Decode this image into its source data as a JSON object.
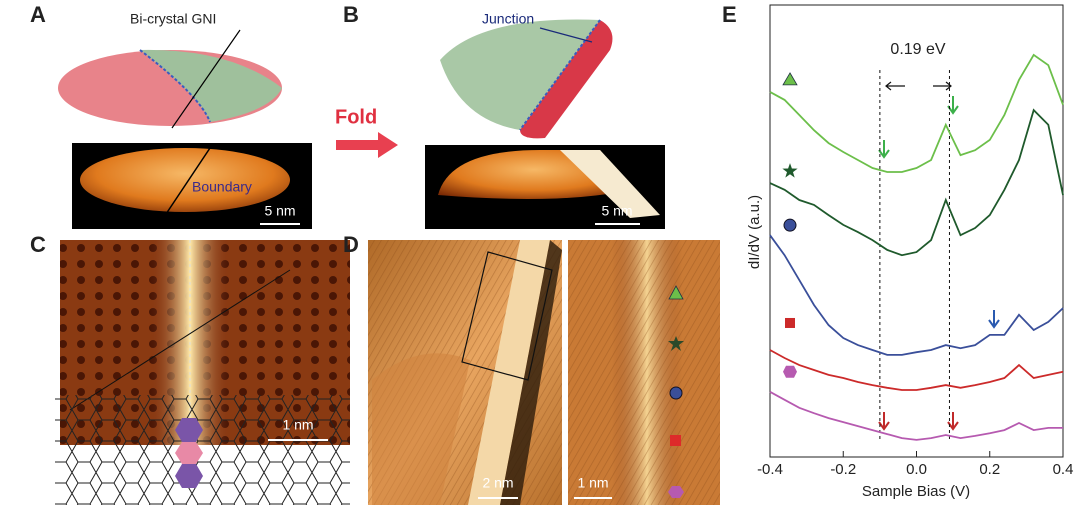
{
  "panel_a": {
    "label": "A",
    "callout": "Bi-crystal GNI",
    "boundary": "Boundary",
    "scale_bar": "5 nm"
  },
  "panel_b": {
    "label": "B",
    "callout": "Junction",
    "arrow_text": "Fold",
    "scale_bar": "5 nm"
  },
  "panel_c": {
    "label": "C",
    "scale_bar": "1 nm"
  },
  "panel_d": {
    "label": "D",
    "scale_bar_left": "2 nm",
    "scale_bar_right": "1 nm"
  },
  "chart_data": {
    "type": "line",
    "label": "E",
    "xlabel": "Sample Bias (V)",
    "ylabel": "dI/dV (a.u.)",
    "annotation": "0.19 eV",
    "x": [
      -0.4,
      -0.36,
      -0.32,
      -0.28,
      -0.24,
      -0.2,
      -0.16,
      -0.12,
      -0.08,
      -0.04,
      0,
      0.04,
      0.08,
      0.12,
      0.16,
      0.2,
      0.24,
      0.28,
      0.32,
      0.36,
      0.4
    ],
    "xlim": [
      -0.4,
      0.4
    ],
    "xticks": [
      -0.4,
      -0.2,
      {
        "value": 0,
        "label": "0.0"
      },
      0.2,
      0.4
    ],
    "ylim": [
      0,
      10
    ],
    "vlines": [
      -0.1,
      0.09
    ],
    "series": [
      {
        "color": "#6cbf4a",
        "marker": "triangle",
        "values": [
          8.16,
          7.98,
          7.64,
          7.3,
          7.01,
          6.81,
          6.63,
          6.45,
          6.36,
          6.36,
          6.45,
          6.63,
          7.42,
          6.74,
          6.85,
          7.08,
          7.64,
          8.43,
          8.99,
          8.76,
          7.87
        ]
      },
      {
        "color": "#1f5a2c",
        "marker": "star",
        "values": [
          6.11,
          5.96,
          5.73,
          5.62,
          5.39,
          5.17,
          5.01,
          4.83,
          4.61,
          4.49,
          4.56,
          4.83,
          5.73,
          4.94,
          5.1,
          5.39,
          5.96,
          6.63,
          7.75,
          7.42,
          5.84
        ]
      },
      {
        "color": "#3a4f9a",
        "marker": "circle",
        "values": [
          4.94,
          4.49,
          3.93,
          3.37,
          2.92,
          2.63,
          2.47,
          2.36,
          2.25,
          2.25,
          2.31,
          2.36,
          2.47,
          2.4,
          2.47,
          2.7,
          2.7,
          3.15,
          2.81,
          2.99,
          3.3
        ]
      },
      {
        "color": "#cc2a2a",
        "marker": "square",
        "values": [
          2.36,
          2.18,
          2.02,
          1.91,
          1.8,
          1.73,
          1.64,
          1.57,
          1.51,
          1.46,
          1.46,
          1.51,
          1.57,
          1.51,
          1.57,
          1.64,
          1.73,
          2.02,
          1.73,
          1.8,
          1.87
        ]
      },
      {
        "color": "#b65ab0",
        "marker": "hexagon",
        "values": [
          1.42,
          1.24,
          1.06,
          0.94,
          0.83,
          0.74,
          0.65,
          0.56,
          0.47,
          0.38,
          0.34,
          0.38,
          0.45,
          0.38,
          0.43,
          0.49,
          0.56,
          0.72,
          0.56,
          0.61,
          0.61
        ]
      }
    ]
  }
}
